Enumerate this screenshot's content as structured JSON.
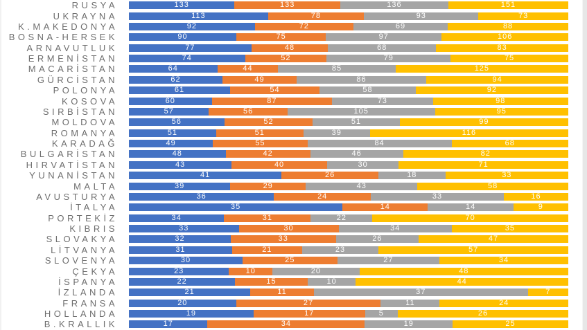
{
  "chart_data": {
    "type": "bar",
    "variant": "stacked-100-percent",
    "orientation": "horizontal",
    "grid": "off",
    "legend": "none",
    "value_label_color": "#FFFFFF",
    "category_label_color": "#6E6E6E",
    "categories": [
      "RUSYA",
      "UKRAYNA",
      "K.MAKEDONYA",
      "BOSNA-HERSEK",
      "ARNAVUTLUK",
      "ERMENİSTAN",
      "MACARİSTAN",
      "GÜRCİSTAN",
      "POLONYA",
      "KOSOVA",
      "SIRBİSTAN",
      "MOLDOVA",
      "ROMANYA",
      "KARADAĞ",
      "BULGARİSTAN",
      "HIRVATİSTAN",
      "YUNANİSTAN",
      "MALTA",
      "AVUSTURYA",
      "İTALYA",
      "PORTEKİZ",
      "KIBRIS",
      "SLOVAKYA",
      "LİTVANYA",
      "SLOVENYA",
      "ÇEKYA",
      "İSPANYA",
      "İZLANDA",
      "FRANSA",
      "HOLLANDA",
      "B.KRALLIK"
    ],
    "series": [
      {
        "name": "blue",
        "color": "#4472C4",
        "values": [
          133,
          113,
          92,
          90,
          77,
          74,
          64,
          62,
          61,
          60,
          57,
          56,
          51,
          49,
          48,
          43,
          41,
          39,
          36,
          35,
          34,
          33,
          32,
          31,
          30,
          23,
          22,
          21,
          20,
          19,
          17
        ]
      },
      {
        "name": "orange",
        "color": "#ED7D31",
        "values": [
          133,
          78,
          72,
          75,
          48,
          52,
          44,
          49,
          54,
          87,
          56,
          52,
          51,
          55,
          42,
          40,
          26,
          29,
          24,
          14,
          31,
          30,
          33,
          21,
          25,
          10,
          15,
          11,
          27,
          17,
          34
        ]
      },
      {
        "name": "gray",
        "color": "#A5A5A5",
        "values": [
          136,
          93,
          69,
          97,
          68,
          79,
          85,
          86,
          58,
          73,
          105,
          51,
          39,
          84,
          46,
          30,
          18,
          43,
          33,
          14,
          22,
          34,
          26,
          23,
          27,
          20,
          10,
          37,
          11,
          5,
          19
        ]
      },
      {
        "name": "yellow",
        "color": "#FFC000",
        "values": [
          151,
          73,
          88,
          106,
          83,
          75,
          125,
          94,
          92,
          98,
          95,
          99,
          116,
          68,
          82,
          71,
          33,
          58,
          16,
          9,
          70,
          35,
          47,
          57,
          34,
          48,
          44,
          7,
          24,
          26,
          25
        ]
      }
    ]
  }
}
